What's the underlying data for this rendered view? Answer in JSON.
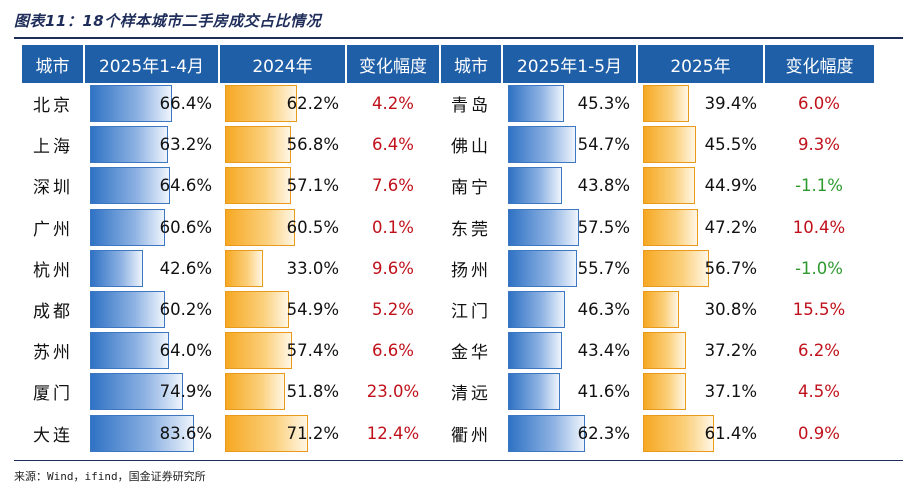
{
  "title": "图表11：18个样本城市二手房成交占比情况",
  "headers": [
    "城市",
    "2025年1-4月",
    "2024年",
    "变化幅度",
    "城市",
    "2025年1-5月",
    "2025年",
    "变化幅度"
  ],
  "colors": {
    "header_bg": "#1f5fa8",
    "bar_blue": "#2f72c4",
    "bar_orange": "#f6a823",
    "positive": "#c0111b",
    "negative": "#2e9a2e"
  },
  "rows": [
    {
      "left": {
        "city": "北京",
        "a": "66.4%",
        "a_v": 66.4,
        "b": "62.2%",
        "b_v": 62.2,
        "chg": "4.2%",
        "sign": "pos"
      },
      "right": {
        "city": "青岛",
        "a": "45.3%",
        "a_v": 45.3,
        "b": "39.4%",
        "b_v": 39.4,
        "chg": "6.0%",
        "sign": "pos"
      }
    },
    {
      "left": {
        "city": "上海",
        "a": "63.2%",
        "a_v": 63.2,
        "b": "56.8%",
        "b_v": 56.8,
        "chg": "6.4%",
        "sign": "pos"
      },
      "right": {
        "city": "佛山",
        "a": "54.7%",
        "a_v": 54.7,
        "b": "45.5%",
        "b_v": 45.5,
        "chg": "9.3%",
        "sign": "pos"
      }
    },
    {
      "left": {
        "city": "深圳",
        "a": "64.6%",
        "a_v": 64.6,
        "b": "57.1%",
        "b_v": 57.1,
        "chg": "7.6%",
        "sign": "pos"
      },
      "right": {
        "city": "南宁",
        "a": "43.8%",
        "a_v": 43.8,
        "b": "44.9%",
        "b_v": 44.9,
        "chg": "-1.1%",
        "sign": "neg"
      }
    },
    {
      "left": {
        "city": "广州",
        "a": "60.6%",
        "a_v": 60.6,
        "b": "60.5%",
        "b_v": 60.5,
        "chg": "0.1%",
        "sign": "pos"
      },
      "right": {
        "city": "东莞",
        "a": "57.5%",
        "a_v": 57.5,
        "b": "47.2%",
        "b_v": 47.2,
        "chg": "10.4%",
        "sign": "pos"
      }
    },
    {
      "left": {
        "city": "杭州",
        "a": "42.6%",
        "a_v": 42.6,
        "b": "33.0%",
        "b_v": 33.0,
        "chg": "9.6%",
        "sign": "pos"
      },
      "right": {
        "city": "扬州",
        "a": "55.7%",
        "a_v": 55.7,
        "b": "56.7%",
        "b_v": 56.7,
        "chg": "-1.0%",
        "sign": "neg"
      }
    },
    {
      "left": {
        "city": "成都",
        "a": "60.2%",
        "a_v": 60.2,
        "b": "54.9%",
        "b_v": 54.9,
        "chg": "5.2%",
        "sign": "pos"
      },
      "right": {
        "city": "江门",
        "a": "46.3%",
        "a_v": 46.3,
        "b": "30.8%",
        "b_v": 30.8,
        "chg": "15.5%",
        "sign": "pos"
      }
    },
    {
      "left": {
        "city": "苏州",
        "a": "64.0%",
        "a_v": 64.0,
        "b": "57.4%",
        "b_v": 57.4,
        "chg": "6.6%",
        "sign": "pos"
      },
      "right": {
        "city": "金华",
        "a": "43.4%",
        "a_v": 43.4,
        "b": "37.2%",
        "b_v": 37.2,
        "chg": "6.2%",
        "sign": "pos"
      }
    },
    {
      "left": {
        "city": "厦门",
        "a": "74.9%",
        "a_v": 74.9,
        "b": "51.8%",
        "b_v": 51.8,
        "chg": "23.0%",
        "sign": "pos"
      },
      "right": {
        "city": "清远",
        "a": "41.6%",
        "a_v": 41.6,
        "b": "37.1%",
        "b_v": 37.1,
        "chg": "4.5%",
        "sign": "pos"
      }
    },
    {
      "left": {
        "city": "大连",
        "a": "83.6%",
        "a_v": 83.6,
        "b": "71.2%",
        "b_v": 71.2,
        "chg": "12.4%",
        "sign": "pos"
      },
      "right": {
        "city": "衢州",
        "a": "62.3%",
        "a_v": 62.3,
        "b": "61.4%",
        "b_v": 61.4,
        "chg": "0.9%",
        "sign": "pos"
      }
    }
  ],
  "source": "来源：Wind，ifind，国金证券研究所"
}
